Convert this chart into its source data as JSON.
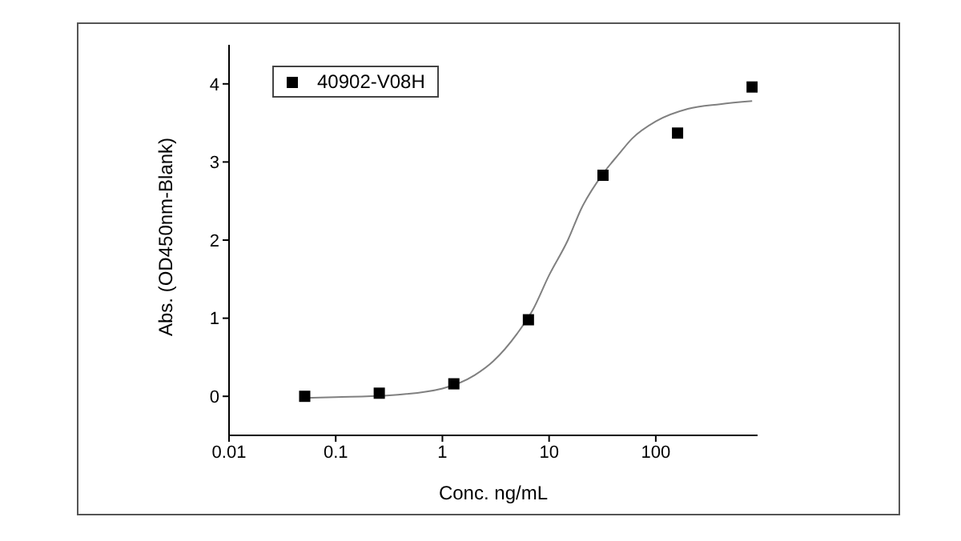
{
  "chart_data": {
    "type": "scatter",
    "xlabel": "Conc. ng/mL",
    "ylabel": "Abs. (OD450nm-Blank)",
    "log": "x",
    "xlim": [
      0.01,
      900
    ],
    "xticks": [
      0.01,
      0.1,
      1,
      10,
      100
    ],
    "ylim": [
      -0.5,
      4.5
    ],
    "yticks": [
      0,
      1,
      2,
      3,
      4
    ],
    "grid": false,
    "legend": "top left",
    "marker": "square",
    "series": [
      {
        "name": "40902-V08H",
        "color": "#000000",
        "x": [
          0.0512,
          0.256,
          1.28,
          6.4,
          32,
          160,
          800
        ],
        "values": [
          0,
          0.04,
          0.16,
          0.98,
          2.83,
          3.37,
          3.96
        ]
      },
      {
        "type": "line",
        "color": "#808080",
        "marker": "none",
        "x": [
          0.0512,
          0.1,
          0.3,
          1,
          2,
          3,
          5,
          7,
          10,
          15,
          20,
          32,
          45,
          60,
          100,
          200,
          400,
          800
        ],
        "values": [
          -0.02,
          -0.01,
          0.01,
          0.1,
          0.27,
          0.45,
          0.8,
          1.1,
          1.55,
          2.0,
          2.4,
          2.85,
          3.1,
          3.3,
          3.52,
          3.68,
          3.74,
          3.78
        ]
      }
    ]
  }
}
